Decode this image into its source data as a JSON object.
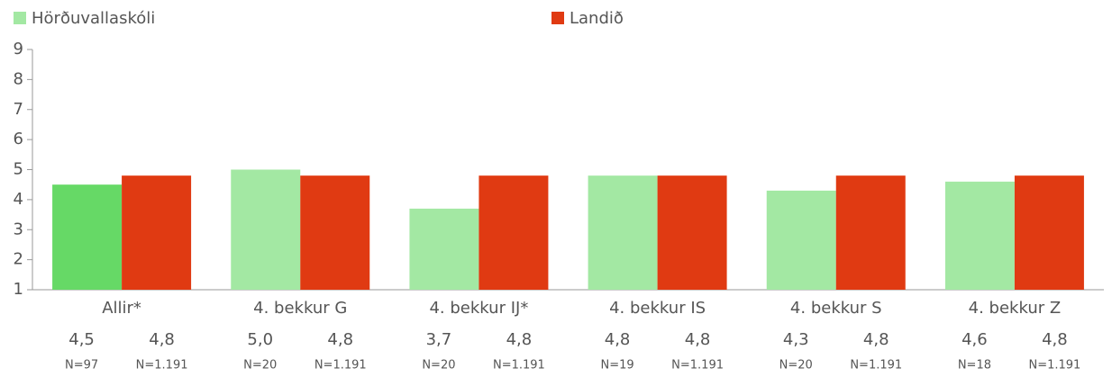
{
  "chart_data": {
    "type": "bar",
    "categories": [
      "Allir*",
      "4. bekkur G",
      "4. bekkur IJ*",
      "4. bekkur IS",
      "4. bekkur S",
      "4. bekkur Z"
    ],
    "series": [
      {
        "name": "Hörðuvallaskóli",
        "color": "#a3e8a3",
        "colors": [
          "#66d966",
          "#a3e8a3",
          "#a3e8a3",
          "#a3e8a3",
          "#a3e8a3",
          "#a3e8a3"
        ],
        "values": [
          4.5,
          5.0,
          3.7,
          4.8,
          4.3,
          4.6
        ],
        "value_labels": [
          "4,5",
          "5,0",
          "3,7",
          "4,8",
          "4,3",
          "4,6"
        ],
        "n_labels": [
          "N=97",
          "N=20",
          "N=20",
          "N=19",
          "N=20",
          "N=18"
        ]
      },
      {
        "name": "Landið",
        "color": "#e03a12",
        "colors": [
          "#e03a12",
          "#e03a12",
          "#e03a12",
          "#e03a12",
          "#e03a12",
          "#e03a12"
        ],
        "values": [
          4.8,
          4.8,
          4.8,
          4.8,
          4.8,
          4.8
        ],
        "value_labels": [
          "4,8",
          "4,8",
          "4,8",
          "4,8",
          "4,8",
          "4,8"
        ],
        "n_labels": [
          "N=1.191",
          "N=1.191",
          "N=1.191",
          "N=1.191",
          "N=1.191",
          "N=1.191"
        ]
      }
    ],
    "ylim": [
      1,
      9
    ],
    "yticks": [
      1,
      2,
      3,
      4,
      5,
      6,
      7,
      8,
      9
    ]
  }
}
